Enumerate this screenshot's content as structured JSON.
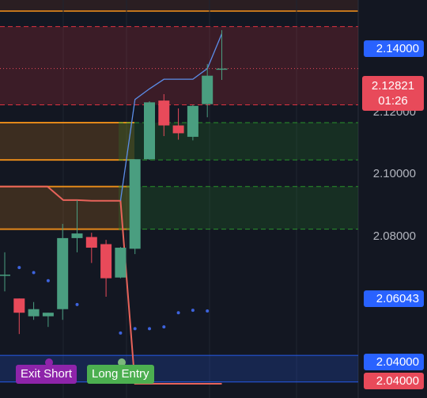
{
  "chart_data": {
    "type": "candlestick",
    "ylim": [
      2.0355,
      2.1475
    ],
    "candles": [
      {
        "o": 2.0702,
        "h": 2.0765,
        "l": 2.0655,
        "c": 2.0702
      },
      {
        "o": 2.0635,
        "h": 2.0635,
        "l": 2.0535,
        "c": 2.0595
      },
      {
        "o": 2.0585,
        "h": 2.0625,
        "l": 2.0575,
        "c": 2.0605
      },
      {
        "o": 2.0585,
        "h": 2.0595,
        "l": 2.0555,
        "c": 2.0595
      },
      {
        "o": 2.0605,
        "h": 2.0845,
        "l": 2.0575,
        "c": 2.0805
      },
      {
        "o": 2.0805,
        "h": 2.0912,
        "l": 2.0765,
        "c": 2.0818
      },
      {
        "o": 2.0808,
        "h": 2.082,
        "l": 2.0735,
        "c": 2.0778
      },
      {
        "o": 2.0788,
        "h": 2.08,
        "l": 2.064,
        "c": 2.0692
      },
      {
        "o": 2.0694,
        "h": 2.078,
        "l": 2.0692,
        "c": 2.0778
      },
      {
        "o": 2.0775,
        "h": 2.1027,
        "l": 2.076,
        "c": 2.1027
      },
      {
        "o": 2.1027,
        "h": 2.119,
        "l": 2.1025,
        "c": 2.1187
      },
      {
        "o": 2.1192,
        "h": 2.121,
        "l": 2.1092,
        "c": 2.1122
      },
      {
        "o": 2.1122,
        "h": 2.117,
        "l": 2.1082,
        "c": 2.11
      },
      {
        "o": 2.109,
        "h": 2.118,
        "l": 2.108,
        "c": 2.1177
      },
      {
        "o": 2.1182,
        "h": 2.1295,
        "l": 2.1145,
        "c": 2.1262
      },
      {
        "o": 2.1282,
        "h": 2.139,
        "l": 2.125,
        "c": 2.1282
      }
    ],
    "stop_line": [
      null,
      null,
      null,
      null,
      null,
      2.0912,
      2.091,
      2.091,
      2.091,
      2.0395,
      2.0395,
      2.0395,
      2.0395,
      2.0395,
      2.0395,
      2.0395
    ],
    "trail_line": [
      null,
      null,
      null,
      null,
      null,
      null,
      null,
      null,
      2.091,
      2.1195,
      2.1225,
      2.1252,
      2.1252,
      2.1252,
      2.1282,
      2.138
    ],
    "dots": [
      2.0722,
      2.0708,
      2.0685,
      2.0658,
      2.0618,
      2.043,
      2.0435,
      2.0538,
      2.055,
      2.055,
      2.0555,
      2.0595,
      2.0602,
      2.06
    ],
    "zones": [
      {
        "top": 2.14,
        "bottom": 2.118,
        "color": "#f23645",
        "kind": "supply"
      },
      {
        "top": 2.113,
        "bottom": 2.1025,
        "color": "#f7931a",
        "kind": "order-block"
      },
      {
        "top": 2.095,
        "bottom": 2.083,
        "color": "#f7931a",
        "kind": "order-block"
      },
      {
        "top": 2.113,
        "bottom": 2.1025,
        "color": "#2ca02c",
        "kind": "demand"
      },
      {
        "top": 2.095,
        "bottom": 2.083,
        "color": "#2ca02c",
        "kind": "demand"
      },
      {
        "top": 2.0475,
        "bottom": 2.04,
        "color": "#2962ff",
        "kind": "range"
      }
    ],
    "signals": [
      {
        "label": "Exit Short",
        "color": "#8e24aa"
      },
      {
        "label": "Long Entry",
        "color": "#4caf50"
      }
    ],
    "ticks": [
      "2.12000",
      "2.10000",
      "2.08000"
    ],
    "price_labels": [
      {
        "value": "2.14000",
        "color": "#2962ff"
      },
      {
        "value": "2.06043",
        "color": "#2962ff"
      },
      {
        "value": "2.04000",
        "color": "#2962ff"
      },
      {
        "value": "2.04000",
        "color": "#e84a5a"
      }
    ],
    "current_price": {
      "value": "2.12821",
      "countdown": "01:26",
      "color": "#e84a5a"
    },
    "colors": {
      "up": "#4a9e80",
      "down": "#e84a5a",
      "stop": "#e8635a",
      "trail": "#5b8de8",
      "dot": "#3d63dd",
      "bg": "#131722"
    }
  }
}
